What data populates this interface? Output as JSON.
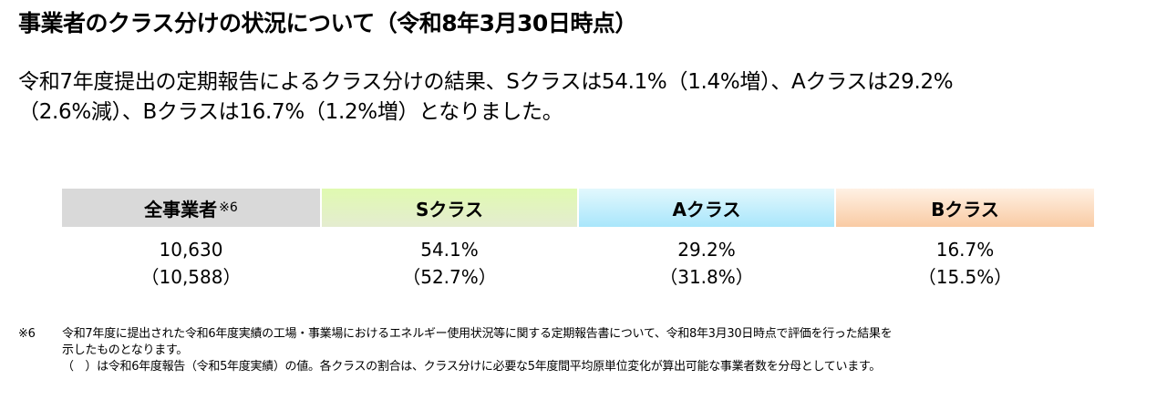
{
  "title": "事業者のクラス分けの状況について（令和8年3月30日時点）",
  "summary": {
    "line1": "令和7年度提出の定期報告によるクラス分けの結果、Sクラスは54.1%（1.4%増）、Aクラスは29.2%",
    "line2": "（2.6%減）、Bクラスは16.7%（1.2%増）となりました。"
  },
  "table": {
    "columns": [
      {
        "label": "全事業者",
        "note": "※6",
        "value": "10,630",
        "previous": "（10,588）",
        "color": "#d9d9d9"
      },
      {
        "label": "Sクラス",
        "note": "",
        "value": "54.1%",
        "previous": "（52.7%）",
        "color": "#e0fab0"
      },
      {
        "label": "Aクラス",
        "note": "",
        "value": "29.2%",
        "previous": "（31.8%）",
        "color": "#a9e6fb"
      },
      {
        "label": "Bクラス",
        "note": "",
        "value": "16.7%",
        "previous": "（15.5%）",
        "color": "#f9cba4"
      }
    ]
  },
  "footnote": {
    "mark": "※6",
    "line1": "令和7年度に提出された令和6年度実績の工場・事業場におけるエネルギー使用状況等に関する定期報告書について、令和8年3月30日時点で評価を行った結果を",
    "line2": "示したものとなります。",
    "line3": "（　）は令和6年度報告（令和5年度実績）の値。各クラスの割合は、クラス分けに必要な5年度間平均原単位変化が算出可能な事業者数を分母としています。"
  }
}
